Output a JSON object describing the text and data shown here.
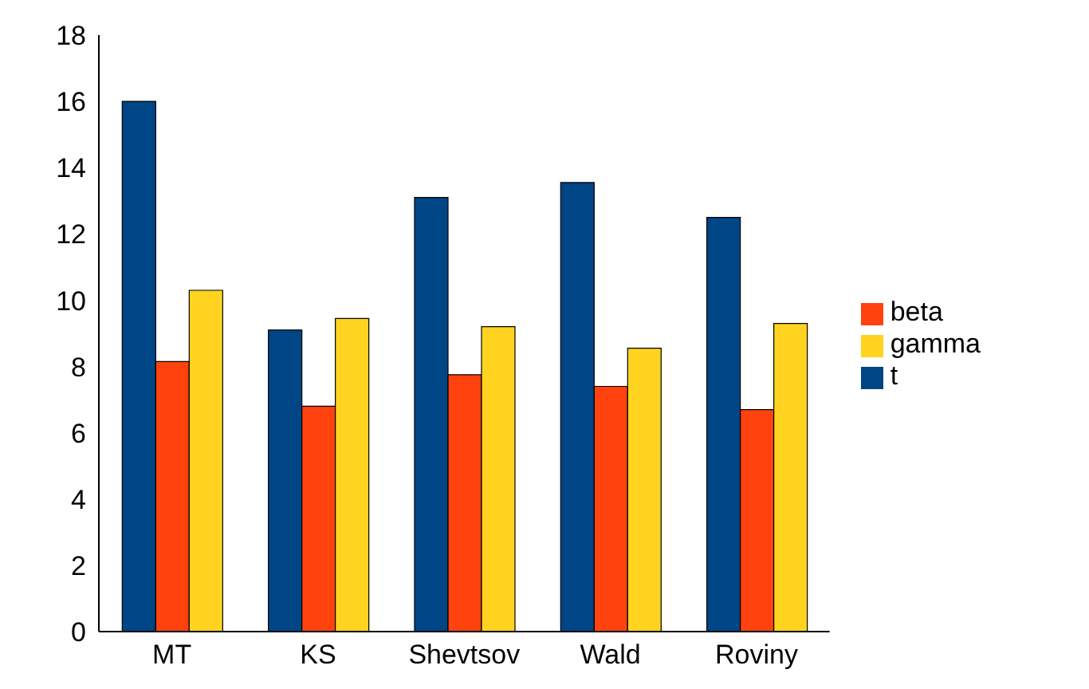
{
  "chart_data": {
    "type": "bar",
    "categories": [
      "MT",
      "KS",
      "Shevtsov",
      "Wald",
      "Roviny"
    ],
    "series": [
      {
        "name": "t",
        "color": "#004586",
        "values": [
          16,
          9.1,
          13.1,
          13.55,
          12.5
        ]
      },
      {
        "name": "beta",
        "color": "#ff420e",
        "values": [
          8.15,
          6.8,
          7.75,
          7.4,
          6.7
        ]
      },
      {
        "name": "gamma",
        "color": "#ffd320",
        "values": [
          10.3,
          9.45,
          9.2,
          8.55,
          9.3
        ]
      }
    ],
    "ylim": [
      0,
      18
    ],
    "yticks": [
      0,
      2,
      4,
      6,
      8,
      10,
      12,
      14,
      16,
      18
    ],
    "grid": false,
    "legend": "right"
  }
}
